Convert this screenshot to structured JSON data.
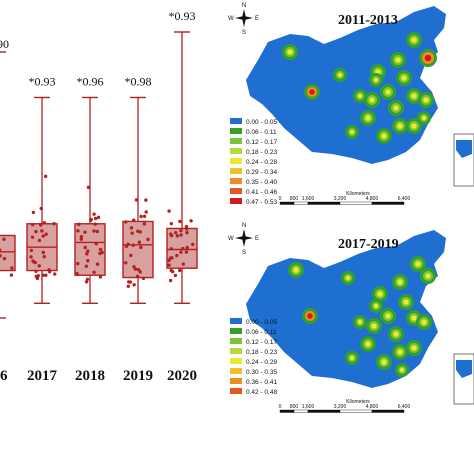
{
  "chart_data": [
    {
      "type": "box",
      "categories": [
        "16",
        "2017",
        "2018",
        "2019",
        "2020"
      ],
      "significance": [
        "",
        "*0.93",
        "*0.96",
        "*0.98",
        "*0.93"
      ],
      "partial_top_label": ".90",
      "boxes": [
        {
          "min": null,
          "q1": 0.11,
          "median": 0.15,
          "q3": 0.185,
          "max": null
        },
        {
          "min": 0.04,
          "q1": 0.11,
          "median": 0.16,
          "q3": 0.21,
          "max": 0.48
        },
        {
          "min": 0.04,
          "q1": 0.1,
          "median": 0.17,
          "q3": 0.21,
          "max": 0.48
        },
        {
          "min": 0.04,
          "q1": 0.095,
          "median": 0.165,
          "q3": 0.215,
          "max": 0.48
        },
        {
          "min": 0.04,
          "q1": 0.115,
          "median": 0.155,
          "q3": 0.2,
          "max": 0.62
        }
      ],
      "ylim": [
        0.0,
        0.62
      ],
      "box_color": "#d9a0a0",
      "line_color": "#b22222"
    },
    {
      "type": "map",
      "title": "2011-2013",
      "compass": {
        "n": "N",
        "s": "S",
        "e": "E",
        "w": "W"
      },
      "legend": [
        "0.00 - 0.05",
        "0.06 - 0.11",
        "0.12 - 0.17",
        "0.18 - 0.23",
        "0.24 - 0.28",
        "0.29 - 0.34",
        "0.35 - 0.40",
        "0.41 - 0.46",
        "0.47 - 0.53"
      ],
      "scale": {
        "unit": "Kilometers",
        "ticks": [
          "0",
          "800",
          "1,600",
          "3,200",
          "4,800",
          "6,400"
        ]
      }
    },
    {
      "type": "map",
      "title": "2017-2019",
      "compass": {
        "n": "N",
        "s": "S",
        "e": "E",
        "w": "W"
      },
      "legend": [
        "0.00 - 0.05",
        "0.06 - 0.11",
        "0.12 - 0.17",
        "0.18 - 0.23",
        "0.24 - 0.29",
        "0.30 - 0.35",
        "0.36 - 0.41",
        "0.42 - 0.48"
      ],
      "scale": {
        "unit": "Kilometers",
        "ticks": [
          "0",
          "800",
          "1,600",
          "3,200",
          "4,800",
          "6,400"
        ]
      }
    }
  ],
  "colors": {
    "legend": [
      "#1f6fd1",
      "#34a02c",
      "#7bc43a",
      "#b5da3a",
      "#eaea2a",
      "#f2c12a",
      "#ef8c25",
      "#e8561f",
      "#d7191c"
    ],
    "ocean_bg": "#ffffff",
    "land": "#1f6fd1"
  }
}
